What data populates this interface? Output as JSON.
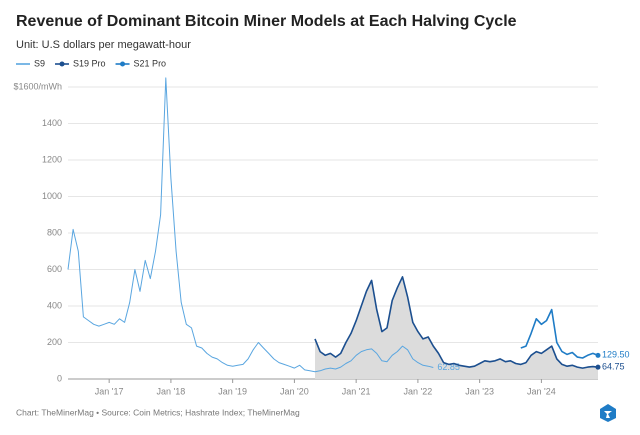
{
  "chart_data": {
    "type": "line",
    "title": "Revenue of Dominant Bitcoin Miner Models at Each Halving Cycle",
    "subtitle": "Unit: U.S dollars per megawatt-hour",
    "source": "Chart: TheMinerMag • Source: Coin Metrics; Hashrate Index; TheMinerMag",
    "legend": "top-left",
    "grid": true,
    "xlim": [
      "2016-05",
      "2024-12"
    ],
    "xticks": [
      {
        "value": "2017-01",
        "label": "Jan '17"
      },
      {
        "value": "2018-01",
        "label": "Jan '18"
      },
      {
        "value": "2019-01",
        "label": "Jan '19"
      },
      {
        "value": "2020-01",
        "label": "Jan '20"
      },
      {
        "value": "2021-01",
        "label": "Jan '21"
      },
      {
        "value": "2022-01",
        "label": "Jan '22"
      },
      {
        "value": "2023-01",
        "label": "Jan '23"
      },
      {
        "value": "2024-01",
        "label": "Jan '24"
      }
    ],
    "ylim": [
      0,
      1600
    ],
    "yticks": [
      0,
      200,
      400,
      600,
      800,
      1000,
      1200,
      1400,
      {
        "value": 1600,
        "label": "$1600/mWh"
      }
    ],
    "series": [
      {
        "name": "S9",
        "color": "#5aa6e0",
        "marker": "none",
        "x": [
          "2016-05",
          "2016-06",
          "2016-07",
          "2016-08",
          "2016-09",
          "2016-10",
          "2016-11",
          "2016-12",
          "2017-01",
          "2017-02",
          "2017-03",
          "2017-04",
          "2017-05",
          "2017-06",
          "2017-07",
          "2017-08",
          "2017-09",
          "2017-10",
          "2017-11",
          "2017-12",
          "2018-01",
          "2018-02",
          "2018-03",
          "2018-04",
          "2018-05",
          "2018-06",
          "2018-07",
          "2018-08",
          "2018-09",
          "2018-10",
          "2018-11",
          "2018-12",
          "2019-01",
          "2019-02",
          "2019-03",
          "2019-04",
          "2019-05",
          "2019-06",
          "2019-07",
          "2019-08",
          "2019-09",
          "2019-10",
          "2019-11",
          "2019-12",
          "2020-01",
          "2020-02",
          "2020-03",
          "2020-04",
          "2020-05",
          "2020-06",
          "2020-07",
          "2020-08",
          "2020-09",
          "2020-10",
          "2020-11",
          "2020-12",
          "2021-01",
          "2021-02",
          "2021-03",
          "2021-04",
          "2021-05",
          "2021-06",
          "2021-07",
          "2021-08",
          "2021-09",
          "2021-10",
          "2021-11",
          "2021-12",
          "2022-01",
          "2022-02",
          "2022-03",
          "2022-04"
        ],
        "values": [
          600,
          820,
          700,
          340,
          320,
          300,
          290,
          300,
          310,
          300,
          330,
          310,
          420,
          600,
          480,
          650,
          550,
          700,
          900,
          1650,
          1100,
          700,
          420,
          300,
          280,
          180,
          170,
          140,
          120,
          110,
          90,
          75,
          70,
          75,
          80,
          110,
          160,
          200,
          170,
          140,
          110,
          90,
          80,
          70,
          60,
          75,
          50,
          45,
          40,
          45,
          55,
          60,
          55,
          65,
          85,
          100,
          130,
          150,
          160,
          165,
          140,
          100,
          95,
          130,
          150,
          180,
          160,
          110,
          90,
          75,
          70,
          62.85
        ]
      },
      {
        "name": "S19 Pro",
        "color": "#1c4f8f",
        "marker": "circle",
        "area": "#dcdcdc",
        "x": [
          "2020-05",
          "2020-06",
          "2020-07",
          "2020-08",
          "2020-09",
          "2020-10",
          "2020-11",
          "2020-12",
          "2021-01",
          "2021-02",
          "2021-03",
          "2021-04",
          "2021-05",
          "2021-06",
          "2021-07",
          "2021-08",
          "2021-09",
          "2021-10",
          "2021-11",
          "2021-12",
          "2022-01",
          "2022-02",
          "2022-03",
          "2022-04",
          "2022-05",
          "2022-06",
          "2022-07",
          "2022-08",
          "2022-09",
          "2022-10",
          "2022-11",
          "2022-12",
          "2023-01",
          "2023-02",
          "2023-03",
          "2023-04",
          "2023-05",
          "2023-06",
          "2023-07",
          "2023-08",
          "2023-09",
          "2023-10",
          "2023-11",
          "2023-12",
          "2024-01",
          "2024-02",
          "2024-03",
          "2024-04",
          "2024-05",
          "2024-06",
          "2024-07",
          "2024-08",
          "2024-09",
          "2024-10",
          "2024-11",
          "2024-12"
        ],
        "values": [
          220,
          150,
          130,
          140,
          120,
          140,
          200,
          250,
          320,
          400,
          480,
          540,
          380,
          260,
          280,
          430,
          500,
          560,
          450,
          310,
          260,
          220,
          230,
          180,
          140,
          90,
          80,
          85,
          75,
          70,
          65,
          70,
          85,
          100,
          95,
          100,
          110,
          95,
          100,
          85,
          80,
          90,
          130,
          150,
          140,
          160,
          180,
          110,
          80,
          70,
          75,
          65,
          60,
          65,
          68,
          64.75
        ]
      },
      {
        "name": "S21 Pro",
        "color": "#1f7cc6",
        "marker": "circle",
        "x": [
          "2023-09",
          "2023-10",
          "2023-11",
          "2023-12",
          "2024-01",
          "2024-02",
          "2024-03",
          "2024-04",
          "2024-05",
          "2024-06",
          "2024-07",
          "2024-08",
          "2024-09",
          "2024-10",
          "2024-11",
          "2024-12"
        ],
        "values": [
          170,
          180,
          250,
          330,
          300,
          320,
          380,
          200,
          150,
          135,
          145,
          120,
          115,
          130,
          140,
          129.5
        ],
        "value_labels": [
          null,
          null,
          null,
          null,
          null,
          null,
          null,
          null,
          null,
          null,
          null,
          null,
          null,
          null,
          null,
          "129.50"
        ]
      }
    ]
  }
}
